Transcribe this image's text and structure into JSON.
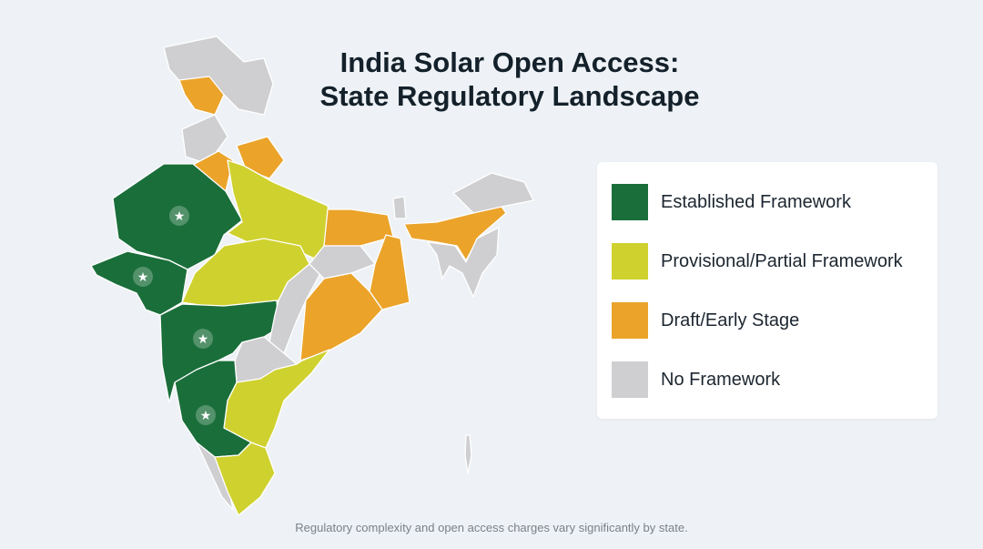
{
  "title": {
    "line1": "India Solar Open Access:",
    "line2": "State Regulatory Landscape"
  },
  "colors": {
    "established": "#1a6e3a",
    "provisional": "#cfd12f",
    "draft": "#eba32a",
    "none": "#cfcfd1"
  },
  "legend": {
    "items": [
      {
        "label": "Established Framework",
        "category": "established"
      },
      {
        "label": "Provisional/Partial Framework",
        "category": "provisional"
      },
      {
        "label": "Draft/Early Stage",
        "category": "draft"
      },
      {
        "label": "No Framework",
        "category": "none"
      }
    ]
  },
  "map": {
    "marker_icon": "star-icon",
    "regions": [
      {
        "region": "Jammu & Kashmir / Ladakh",
        "category": "none"
      },
      {
        "region": "Himachal Pradesh",
        "category": "draft"
      },
      {
        "region": "Punjab",
        "category": "none"
      },
      {
        "region": "Haryana",
        "category": "draft"
      },
      {
        "region": "Uttarakhand",
        "category": "draft"
      },
      {
        "region": "Rajasthan",
        "category": "established",
        "starred": true
      },
      {
        "region": "Gujarat",
        "category": "established",
        "starred": true
      },
      {
        "region": "Uttar Pradesh",
        "category": "provisional"
      },
      {
        "region": "Madhya Pradesh",
        "category": "provisional"
      },
      {
        "region": "Maharashtra",
        "category": "established",
        "starred": true
      },
      {
        "region": "Chhattisgarh",
        "category": "none"
      },
      {
        "region": "Bihar",
        "category": "draft"
      },
      {
        "region": "Jharkhand",
        "category": "none"
      },
      {
        "region": "West Bengal",
        "category": "draft"
      },
      {
        "region": "Odisha",
        "category": "draft"
      },
      {
        "region": "Telangana",
        "category": "none"
      },
      {
        "region": "Andhra Pradesh",
        "category": "provisional"
      },
      {
        "region": "Karnataka",
        "category": "established",
        "starred": true
      },
      {
        "region": "Kerala",
        "category": "none"
      },
      {
        "region": "Tamil Nadu",
        "category": "provisional"
      },
      {
        "region": "Sikkim",
        "category": "none"
      },
      {
        "region": "Assam",
        "category": "draft"
      },
      {
        "region": "Arunachal Pradesh",
        "category": "none"
      },
      {
        "region": "Northeast Hill States",
        "category": "none"
      },
      {
        "region": "Andaman & Nicobar",
        "category": "none"
      }
    ]
  },
  "footer": {
    "note": "Regulatory complexity and open access charges vary significantly by state."
  }
}
